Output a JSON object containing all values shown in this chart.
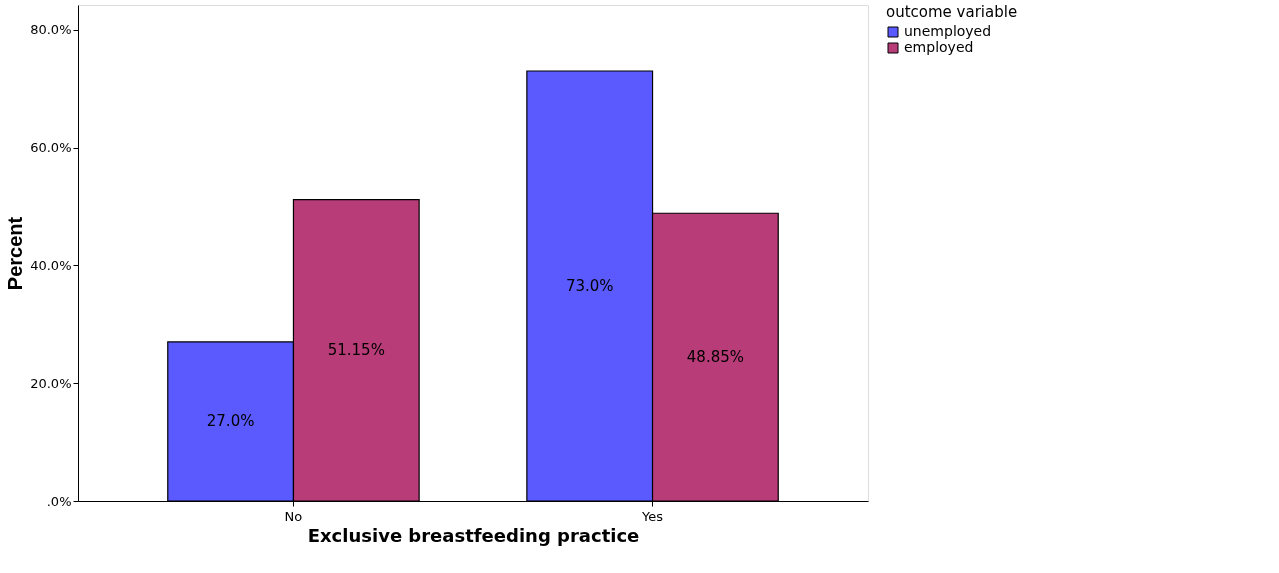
{
  "chart_data": {
    "type": "bar",
    "xlabel": "Exclusive breastfeeding practice",
    "ylabel": "Percent",
    "legend_title": "outcome variable",
    "categories": [
      "No",
      "Yes"
    ],
    "series": [
      {
        "name": "unemployed",
        "color": "#5a5aff",
        "values": [
          27.0,
          73.0
        ],
        "value_labels": [
          "27.0%",
          "73.0%"
        ]
      },
      {
        "name": "employed",
        "color": "#b83c78",
        "values": [
          51.15,
          48.85
        ],
        "value_labels": [
          "51.15%",
          "48.85%"
        ]
      }
    ],
    "ylim": [
      0,
      84.2
    ],
    "yticks": [
      {
        "value": 0,
        "label": ".0%"
      },
      {
        "value": 20,
        "label": "20.0%"
      },
      {
        "value": 40,
        "label": "40.0%"
      },
      {
        "value": 60,
        "label": "60.0%"
      },
      {
        "value": 80,
        "label": "80.0%"
      }
    ],
    "grid": false,
    "legend": "top right"
  }
}
